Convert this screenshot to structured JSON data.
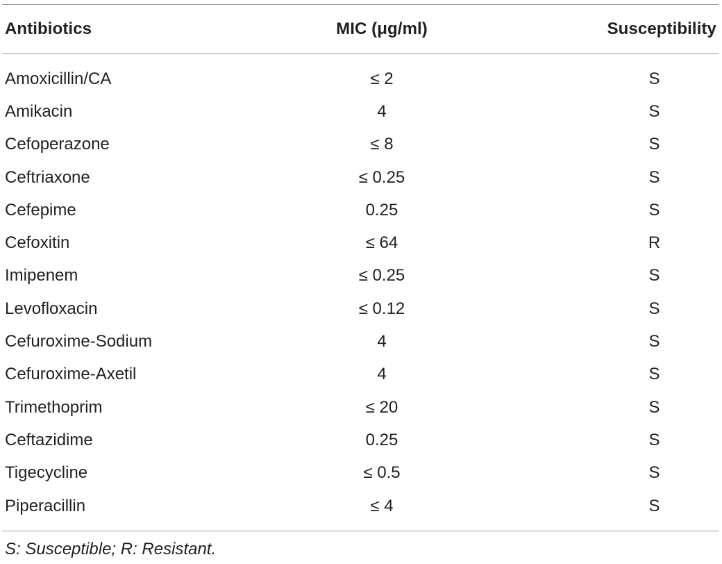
{
  "table": {
    "headers": {
      "antibiotic": "Antibiotics",
      "mic": "MIC (μg/ml)",
      "susceptibility": "Susceptibility"
    },
    "rows": [
      {
        "antibiotic": "Amoxicillin/CA",
        "mic": "≤ 2",
        "susceptibility": "S"
      },
      {
        "antibiotic": "Amikacin",
        "mic": "4",
        "susceptibility": "S"
      },
      {
        "antibiotic": "Cefoperazone",
        "mic": "≤ 8",
        "susceptibility": "S"
      },
      {
        "antibiotic": "Ceftriaxone",
        "mic": "≤ 0.25",
        "susceptibility": "S"
      },
      {
        "antibiotic": "Cefepime",
        "mic": "0.25",
        "susceptibility": "S"
      },
      {
        "antibiotic": "Cefoxitin",
        "mic": "≤ 64",
        "susceptibility": "R"
      },
      {
        "antibiotic": "Imipenem",
        "mic": "≤ 0.25",
        "susceptibility": "S"
      },
      {
        "antibiotic": "Levofloxacin",
        "mic": "≤ 0.12",
        "susceptibility": "S"
      },
      {
        "antibiotic": "Cefuroxime-Sodium",
        "mic": "4",
        "susceptibility": "S"
      },
      {
        "antibiotic": "Cefuroxime-Axetil",
        "mic": "4",
        "susceptibility": "S"
      },
      {
        "antibiotic": "Trimethoprim",
        "mic": "≤ 20",
        "susceptibility": "S"
      },
      {
        "antibiotic": "Ceftazidime",
        "mic": "0.25",
        "susceptibility": "S"
      },
      {
        "antibiotic": "Tigecycline",
        "mic": "≤ 0.5",
        "susceptibility": "S"
      },
      {
        "antibiotic": "Piperacillin",
        "mic": "≤ 4",
        "susceptibility": "S"
      }
    ],
    "footnote": "S: Susceptible; R: Resistant."
  }
}
